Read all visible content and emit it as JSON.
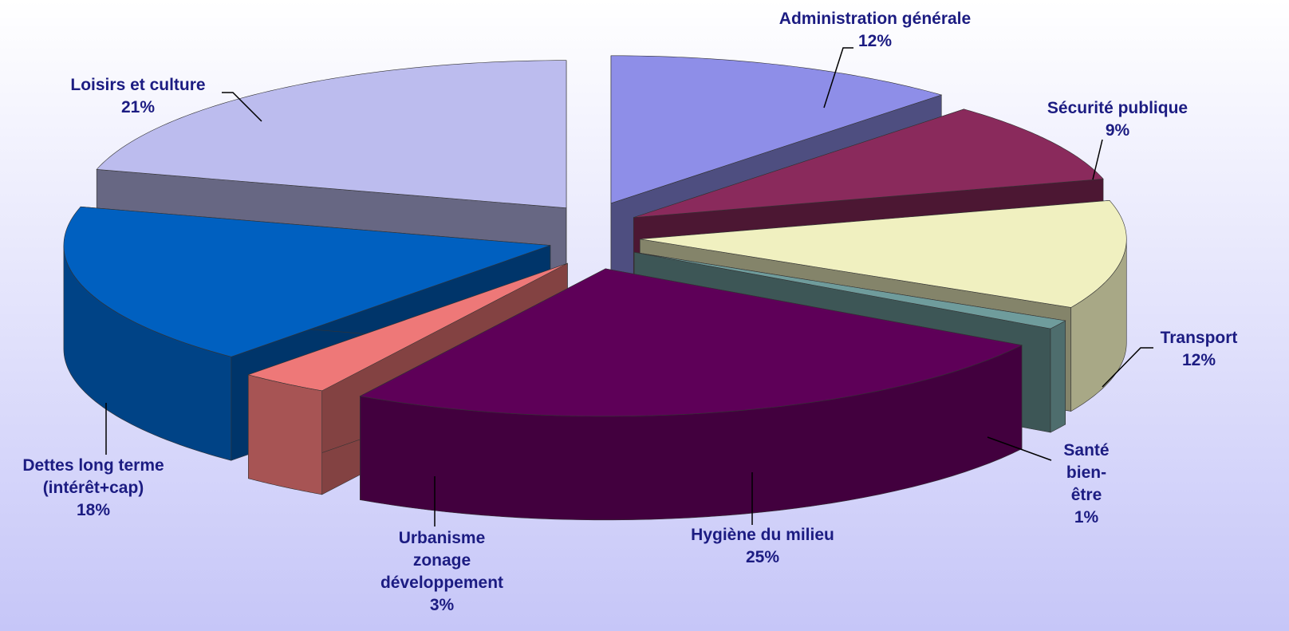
{
  "chart_data": {
    "type": "pie3d",
    "categories": [
      "Administration générale",
      "Sécurité publique",
      "Transport",
      "Santé bien-être",
      "Hygiène du milieu",
      "Urbanisme zonage développement",
      "Dettes long terme (intérêt+cap)",
      "Loisirs et culture"
    ],
    "values": [
      12,
      9,
      12,
      1,
      25,
      3,
      18,
      21
    ],
    "value_labels": [
      "12%",
      "9%",
      "12%",
      "1%",
      "25%",
      "3%",
      "18%",
      "21%"
    ],
    "colors": [
      "#8e8ee8",
      "#8a2a5c",
      "#f0f0c0",
      "#6f9c9c",
      "#5e0058",
      "#ee7878",
      "#0060c0",
      "#bcbcee"
    ]
  }
}
